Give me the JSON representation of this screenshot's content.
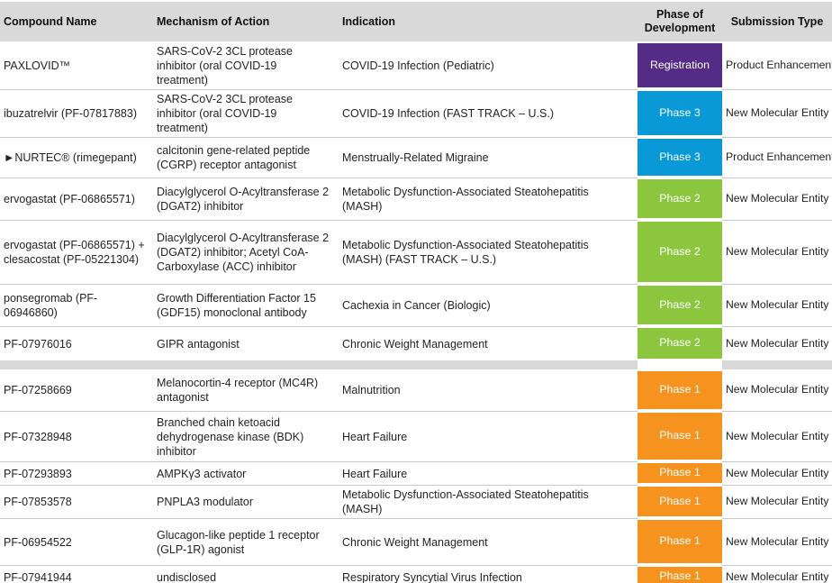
{
  "table": {
    "columns": [
      {
        "label": "Compound Name"
      },
      {
        "label": "Mechanism of Action"
      },
      {
        "label": "Indication"
      },
      {
        "label": "Phase of Development"
      },
      {
        "label": "Submission Type"
      }
    ],
    "sections": [
      {
        "rows": [
          {
            "compound": "PAXLOVID™",
            "mechanism": "SARS-CoV-2 3CL protease inhibitor (oral COVID-19 treatment)",
            "indication": "COVID-19 Infection (Pediatric)",
            "phase": "Registration",
            "submission": "Product Enhancement"
          },
          {
            "compound": "ibuzatrelvir (PF-07817883)",
            "mechanism": "SARS-CoV-2 3CL protease inhibitor (oral COVID-19 treatment)",
            "indication": "COVID-19 Infection (FAST TRACK – U.S.)",
            "phase": "Phase 3",
            "submission": "New Molecular Entity"
          },
          {
            "compound": "►NURTEC® (rimegepant)",
            "mechanism": "calcitonin gene-related peptide (CGRP) receptor antagonist",
            "indication": "Menstrually-Related Migraine",
            "phase": "Phase 3",
            "submission": "Product Enhancement"
          },
          {
            "compound": "ervogastat (PF-06865571)",
            "mechanism": "Diacylglycerol O-Acyltransferase 2 (DGAT2) inhibitor",
            "indication": "Metabolic Dysfunction-Associated Steatohepatitis (MASH)",
            "phase": "Phase 2",
            "submission": "New Molecular Entity"
          },
          {
            "compound": "ervogastat (PF-06865571) + clesacostat (PF-05221304)",
            "mechanism": "Diacylglycerol O-Acyltransferase 2 (DGAT2) inhibitor; Acetyl CoA-Carboxylase (ACC) inhibitor",
            "indication": "Metabolic Dysfunction-Associated Steatohepatitis (MASH) (FAST TRACK – U.S.)",
            "phase": "Phase 2",
            "submission": "New Molecular Entity"
          },
          {
            "compound": "ponsegromab (PF-06946860)",
            "mechanism": "Growth Differentiation Factor 15 (GDF15) monoclonal antibody",
            "indication": "Cachexia in Cancer (Biologic)",
            "phase": "Phase 2",
            "submission": "New Molecular Entity"
          },
          {
            "compound": "PF-07976016",
            "mechanism": "GIPR antagonist",
            "indication": "Chronic Weight Management",
            "phase": "Phase 2",
            "submission": "New Molecular Entity"
          }
        ]
      },
      {
        "rows": [
          {
            "compound": "PF-07258669",
            "mechanism": "Melanocortin-4 receptor (MC4R) antagonist",
            "indication": "Malnutrition",
            "phase": "Phase 1",
            "submission": "New Molecular Entity"
          },
          {
            "compound": "PF-07328948",
            "mechanism": "Branched chain ketoacid dehydrogenase kinase (BDK) inhibitor",
            "indication": "Heart Failure",
            "phase": "Phase 1",
            "submission": "New Molecular Entity"
          },
          {
            "compound": "PF-07293893",
            "mechanism": "AMPKγ3 activator",
            "indication": "Heart Failure",
            "phase": "Phase 1",
            "submission": "New Molecular Entity"
          },
          {
            "compound": "PF-07853578",
            "mechanism": "PNPLA3 modulator",
            "indication": "Metabolic Dysfunction-Associated Steatohepatitis (MASH)",
            "phase": "Phase 1",
            "submission": "New Molecular Entity"
          },
          {
            "compound": "PF-06954522",
            "mechanism": "Glucagon-like peptide 1 receptor (GLP-1R) agonist",
            "indication": "Chronic Weight Management",
            "phase": "Phase 1",
            "submission": "New Molecular Entity"
          },
          {
            "compound": "PF-07941944",
            "mechanism": "undisclosed",
            "indication": "Respiratory Syncytial Virus Infection",
            "phase": "Phase 1",
            "submission": "New Molecular Entity"
          }
        ]
      }
    ]
  },
  "colors": {
    "header_bg": "#d9d9d9",
    "row_divider": "#c9c9c9",
    "separator_bg": "#d9d9d9",
    "badge_text": "#ffffff",
    "phase_colors": {
      "Registration": "#542c85",
      "Phase 3": "#0899d6",
      "Phase 2": "#8cc63e",
      "Phase 1": "#f6921e"
    }
  }
}
